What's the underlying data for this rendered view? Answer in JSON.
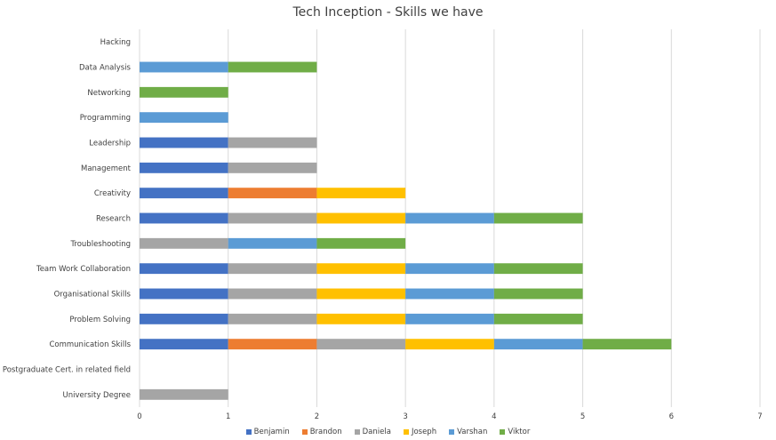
{
  "chart_data": {
    "type": "bar",
    "orientation": "horizontal",
    "stacked": true,
    "title": "Tech Inception - Skills we have",
    "categories": [
      "Hacking",
      "Data Analysis",
      "Networking",
      "Programming",
      "Leadership",
      "Management",
      "Creativity",
      "Research",
      "Troubleshooting",
      "Team Work Collaboration",
      "Organisational Skills",
      "Problem Solving",
      "Communication Skills",
      "Postgraduate Cert. in related field",
      "University Degree"
    ],
    "series": [
      {
        "name": "Benjamin",
        "color": "#4472C4",
        "values": [
          0,
          0,
          0,
          0,
          1,
          1,
          1,
          1,
          0,
          1,
          1,
          1,
          1,
          0,
          0
        ]
      },
      {
        "name": "Brandon",
        "color": "#ED7D31",
        "values": [
          0,
          0,
          0,
          0,
          0,
          0,
          1,
          0,
          0,
          0,
          0,
          0,
          1,
          0,
          0
        ]
      },
      {
        "name": "Daniela",
        "color": "#A5A5A5",
        "values": [
          0,
          0,
          0,
          0,
          1,
          1,
          0,
          1,
          1,
          1,
          1,
          1,
          1,
          0,
          1
        ]
      },
      {
        "name": "Joseph",
        "color": "#FFC000",
        "values": [
          0,
          0,
          0,
          0,
          0,
          0,
          1,
          1,
          0,
          1,
          1,
          1,
          1,
          0,
          0
        ]
      },
      {
        "name": "Varshan",
        "color": "#5B9BD5",
        "values": [
          0,
          1,
          0,
          1,
          0,
          0,
          0,
          1,
          1,
          1,
          1,
          1,
          1,
          0,
          0
        ]
      },
      {
        "name": "Viktor",
        "color": "#70AD47",
        "values": [
          0,
          1,
          1,
          0,
          0,
          0,
          0,
          1,
          1,
          1,
          1,
          1,
          1,
          0,
          0
        ]
      }
    ],
    "xlim": [
      0,
      7
    ],
    "xticks": [
      "0",
      "1",
      "2",
      "3",
      "4",
      "5",
      "6",
      "7"
    ],
    "grid": "vertical",
    "legend_position": "bottom"
  }
}
